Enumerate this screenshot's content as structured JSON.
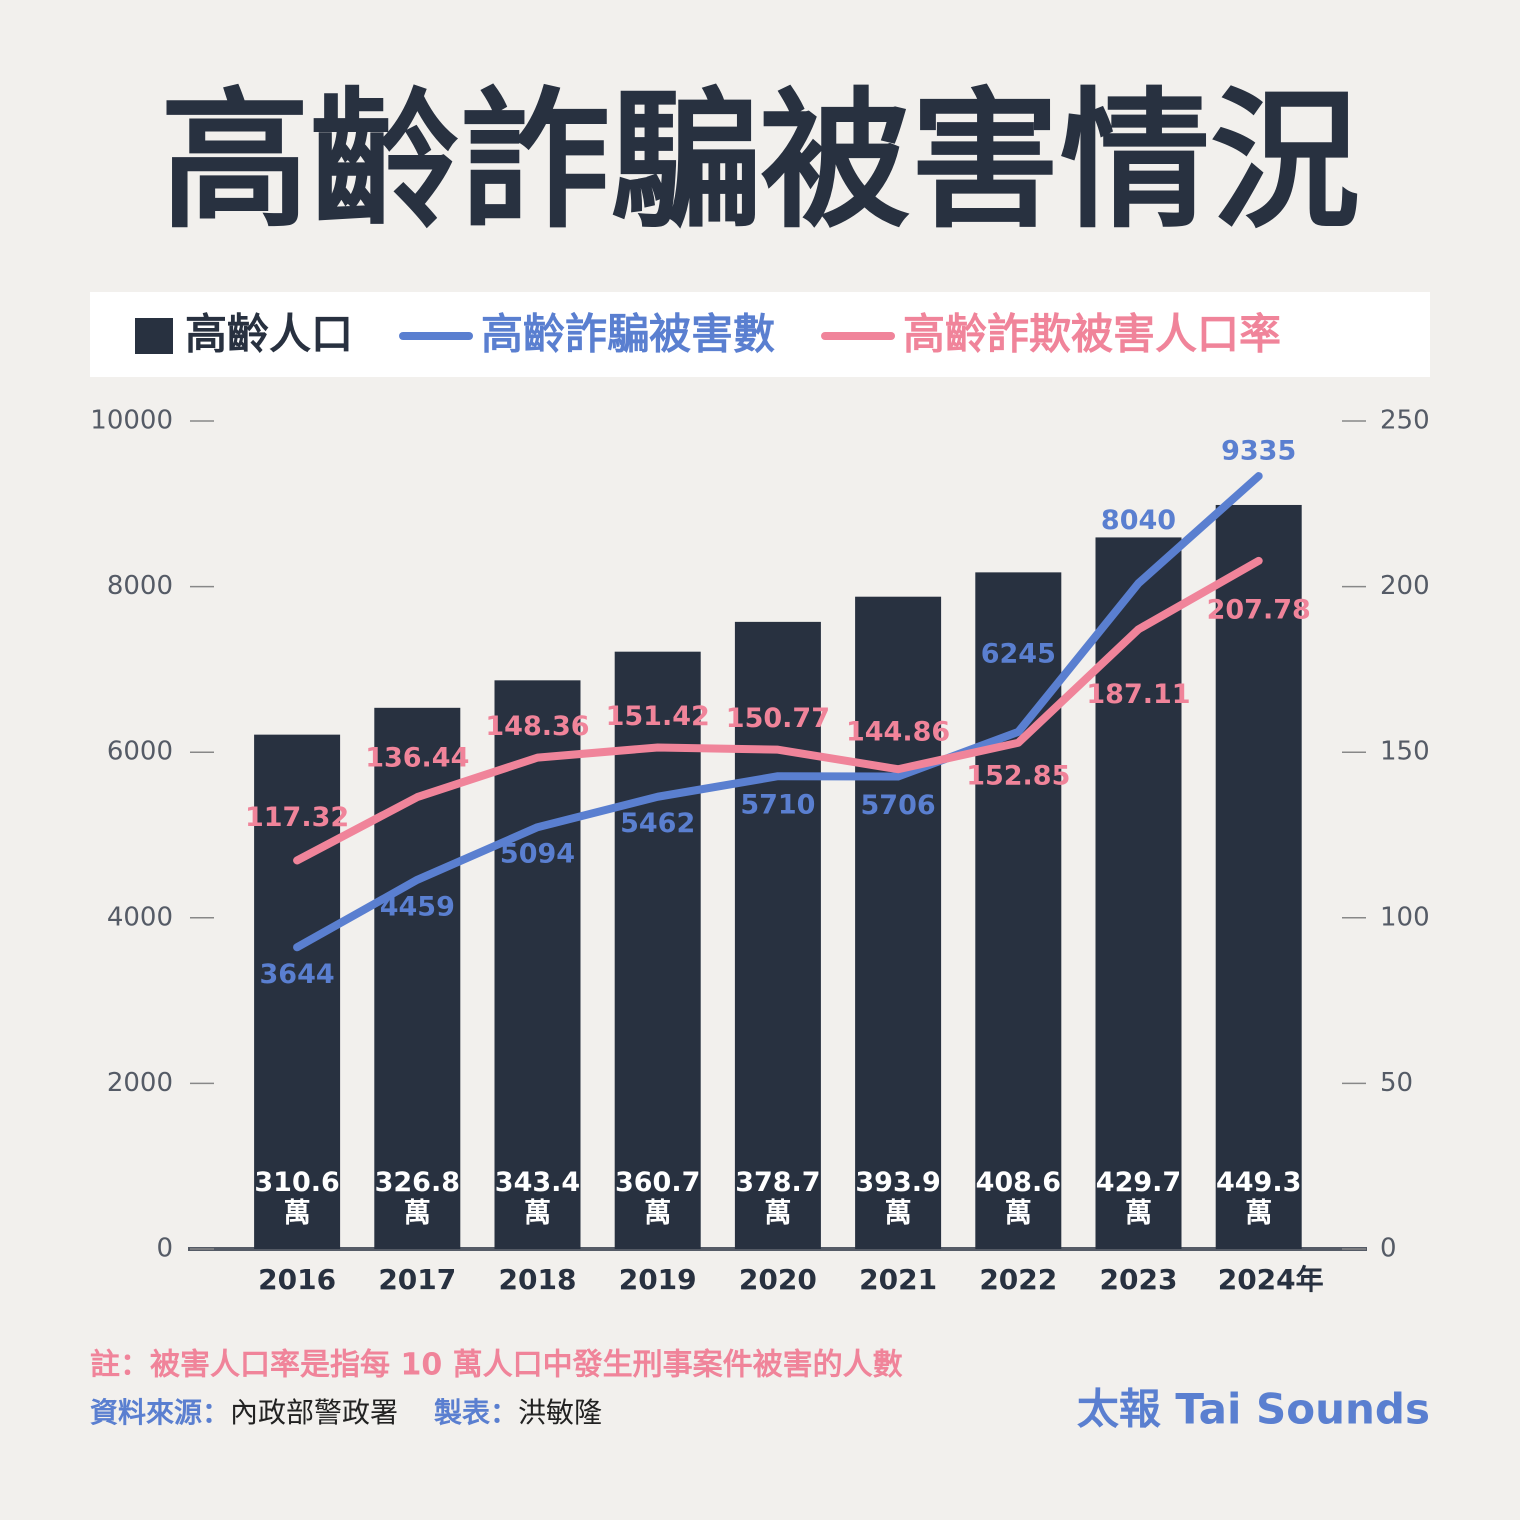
{
  "chart_data": {
    "type": "bar-line",
    "title": "高齡詐騙被害情況",
    "categories": [
      "2016",
      "2017",
      "2018",
      "2019",
      "2020",
      "2021",
      "2022",
      "2023",
      "2024年"
    ],
    "ylim": [
      0,
      10000
    ],
    "yticks": [
      0,
      2000,
      4000,
      6000,
      8000,
      10000
    ],
    "y2lim": [
      0,
      250
    ],
    "y2ticks": [
      0,
      50,
      100,
      150,
      200,
      250
    ],
    "y3lim": [
      0,
      500
    ],
    "series": [
      {
        "name": "高齡人口",
        "type": "bar",
        "axis": "y3",
        "color": "#283140",
        "values": [
          310.6,
          326.8,
          343.4,
          360.7,
          378.7,
          393.9,
          408.6,
          429.7,
          449.3
        ],
        "value_labels": [
          "310.6\n萬",
          "326.8\n萬",
          "343.4\n萬",
          "360.7\n萬",
          "378.7\n萬",
          "393.9\n萬",
          "408.6\n萬",
          "429.7\n萬",
          "449.3\n萬"
        ]
      },
      {
        "name": "高齡詐騙被害數",
        "type": "line",
        "axis": "y",
        "color": "#5a7fd0",
        "values": [
          3644,
          4459,
          5094,
          5462,
          5710,
          5706,
          6245,
          8040,
          9335
        ]
      },
      {
        "name": "高齡詐欺被害人口率",
        "type": "line",
        "axis": "y2",
        "color": "#f0849a",
        "values": [
          117.32,
          136.44,
          148.36,
          151.42,
          150.77,
          144.86,
          152.85,
          187.11,
          207.78
        ]
      }
    ],
    "note": "註：被害人口率是指每 10 萬人口中發生刑事案件被害的人數",
    "source_label": "資料來源：",
    "source": "內政部警政署",
    "author_label": "製表：",
    "author": "洪敏隆",
    "brand": "太報 Tai Sounds"
  }
}
